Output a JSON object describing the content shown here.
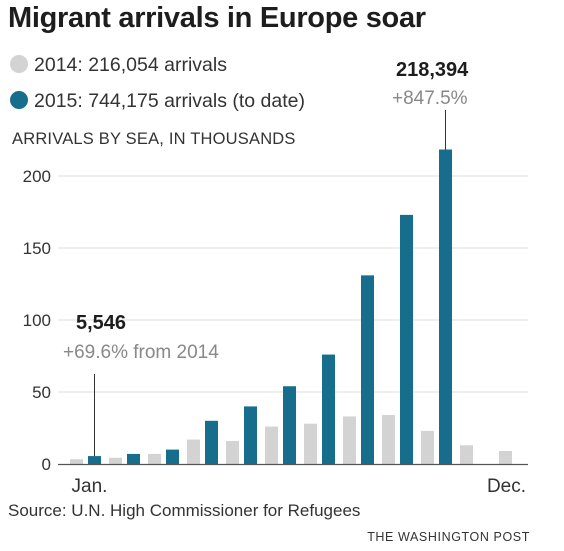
{
  "header": {
    "title": "Migrant arrivals in Europe soar",
    "units_label": "ARRIVALS BY SEA, IN THOUSANDS",
    "source": "Source: U.N. High Commissioner for Refugees",
    "credit": "THE WASHINGTON POST"
  },
  "legend": {
    "series_2014": "2014: 216,054 arrivals",
    "series_2015": "2015: 744,175 arrivals (to date)"
  },
  "callouts": {
    "january": {
      "value": "5,546",
      "note": "+69.6% from 2014"
    },
    "latest": {
      "value": "218,394",
      "note": "+847.5%"
    }
  },
  "colors": {
    "series_2014": "#d3d3d3",
    "series_2015": "#176d8c",
    "gridline": "#dddddd",
    "axis": "#555555"
  },
  "chart_data": {
    "type": "bar",
    "title": "Migrant arrivals in Europe soar",
    "ylabel": "ARRIVALS BY SEA, IN THOUSANDS",
    "ylim": [
      0,
      230
    ],
    "yticks": [
      0,
      50,
      100,
      150,
      200
    ],
    "x_tick_labels": [
      "Jan.",
      "Dec."
    ],
    "months": 12,
    "grid": true,
    "series": [
      {
        "name": "2014: 216,054 arrivals",
        "values": [
          3.3,
          4.3,
          7,
          17,
          16,
          26,
          28,
          33,
          34,
          23,
          13,
          9
        ]
      },
      {
        "name": "2015: 744,175 arrivals (to date)",
        "values": [
          5.5,
          7,
          10,
          30,
          40,
          54,
          76,
          131,
          173,
          218.4,
          null,
          null
        ]
      }
    ]
  }
}
